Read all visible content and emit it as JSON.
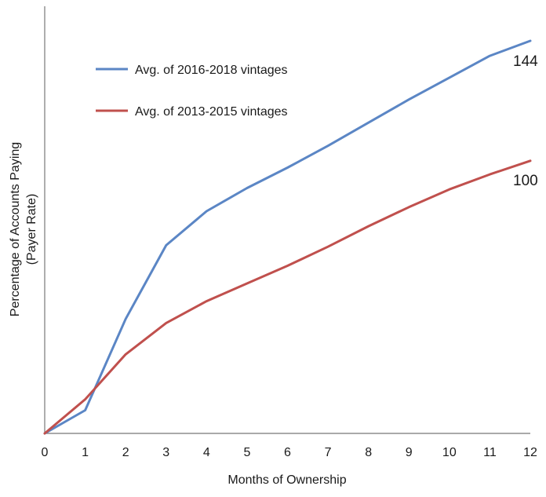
{
  "chart_data": {
    "type": "line",
    "title": "",
    "xlabel": "Months of Ownership",
    "ylabel_lines": [
      "Percentage of Accounts Paying",
      "(Payer Rate)"
    ],
    "categories": [
      "0",
      "1",
      "2",
      "3",
      "4",
      "5",
      "6",
      "7",
      "8",
      "9",
      "10",
      "11",
      "12"
    ],
    "x": [
      0,
      1,
      2,
      3,
      4,
      5,
      6,
      7,
      8,
      9,
      10,
      11,
      12
    ],
    "xlim": [
      0,
      12
    ],
    "ylim": [
      0,
      144
    ],
    "y_tick_labels": false,
    "grid": false,
    "legend_position": "top-left",
    "series": [
      {
        "name": "Avg. of 2016-2018 vintages",
        "color": "#5b86c5",
        "values": [
          0,
          8.5,
          42,
          69,
          81.5,
          90,
          97.5,
          105.5,
          114,
          122.5,
          130.5,
          138.5,
          144
        ],
        "end_label": "144"
      },
      {
        "name": "Avg. of 2013-2015 vintages",
        "color": "#c0504d",
        "values": [
          0,
          12.5,
          29,
          40.5,
          48.5,
          55,
          61.5,
          68.5,
          76,
          83,
          89.5,
          95,
          100
        ],
        "end_label": "100"
      }
    ]
  }
}
